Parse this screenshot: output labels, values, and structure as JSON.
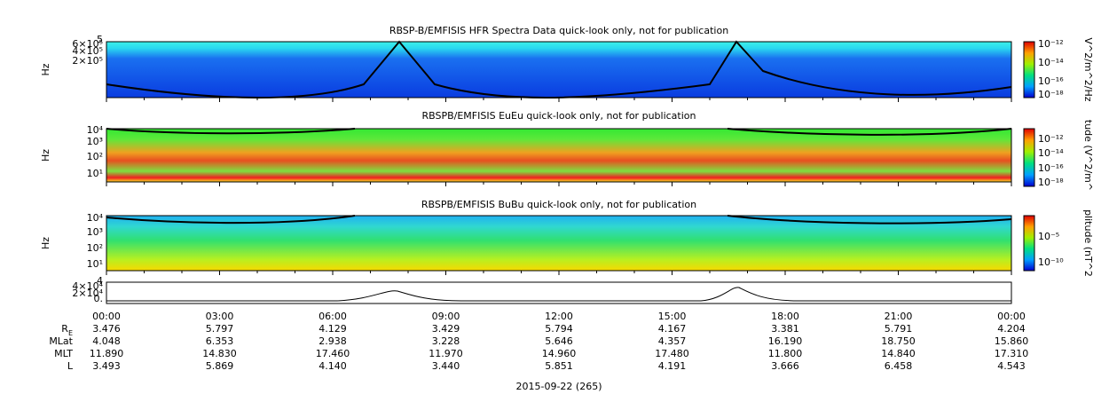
{
  "panels": [
    {
      "title": "RBSP-B/EMFISIS  HFR Spectra Data quick-look only, not for publication",
      "ylabel": "Hz",
      "yticks": [
        "5",
        "6×10⁵",
        "4×10⁵",
        "2×10⁵"
      ],
      "colorbar": {
        "label": "V^2/m^2/Hz",
        "ticks": [
          "10⁻¹²",
          "10⁻¹⁴",
          "10⁻¹⁶",
          "10⁻¹⁸"
        ]
      }
    },
    {
      "title": "RBSPB/EMFISIS  EuEu quick-look only, not for publication",
      "ylabel": "Hz",
      "yticks": [
        "10⁴",
        "10³",
        "10²",
        "10¹"
      ],
      "colorbar": {
        "label": "tude (V^2/m^",
        "ticks": [
          "10⁻¹²",
          "10⁻¹⁴",
          "10⁻¹⁶",
          "10⁻¹⁸"
        ]
      }
    },
    {
      "title": "RBSPB/EMFISIS  BuBu quick-look only, not for publication",
      "ylabel": "Hz",
      "yticks": [
        "10⁴",
        "10³",
        "10²",
        "10¹"
      ],
      "colorbar": {
        "label": "plitude (nT^2",
        "ticks": [
          "10⁻⁵",
          "10⁻¹⁰"
        ]
      }
    }
  ],
  "line_panel": {
    "yticks": [
      "4",
      "4×10⁴",
      "2×10⁴",
      "0."
    ]
  },
  "time_ticks": [
    "00:00",
    "03:00",
    "06:00",
    "09:00",
    "12:00",
    "15:00",
    "18:00",
    "21:00",
    "00:00"
  ],
  "ephemeris": [
    {
      "label": "R",
      "sub": "E",
      "values": [
        "3.476",
        "5.797",
        "4.129",
        "3.429",
        "5.794",
        "4.167",
        "3.381",
        "5.791",
        "4.204"
      ]
    },
    {
      "label": "MLat",
      "values": [
        "4.048",
        "6.353",
        "2.938",
        "3.228",
        "5.646",
        "4.357",
        "16.190",
        "18.750",
        "15.860"
      ]
    },
    {
      "label": "MLT",
      "values": [
        "11.890",
        "14.830",
        "17.460",
        "11.970",
        "14.960",
        "17.480",
        "11.800",
        "14.840",
        "17.310"
      ]
    },
    {
      "label": "L",
      "values": [
        "3.493",
        "5.869",
        "4.140",
        "3.440",
        "5.851",
        "4.191",
        "3.666",
        "6.458",
        "4.543"
      ]
    }
  ],
  "date": "2015-09-22 (265)"
}
